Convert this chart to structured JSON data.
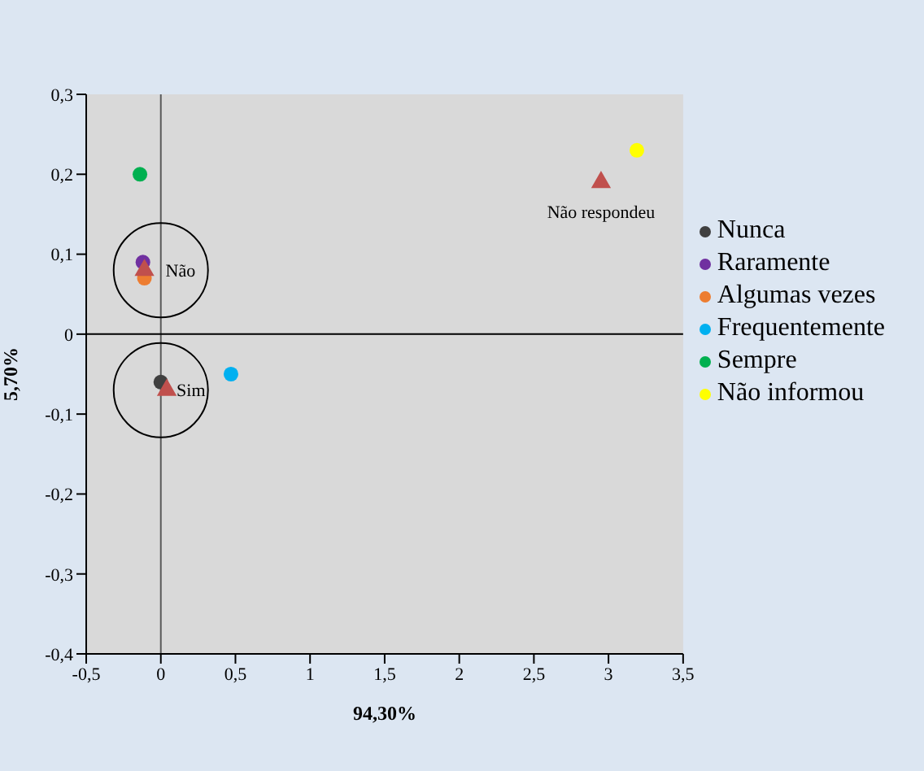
{
  "chart_data": {
    "type": "scatter",
    "xlabel": "94,30%",
    "ylabel": "5,70%",
    "xlim": [
      -0.5,
      3.5
    ],
    "ylim": [
      -0.4,
      0.3
    ],
    "xticks": [
      {
        "value": -0.5,
        "label": "-0,5"
      },
      0,
      {
        "value": 0.5,
        "label": "0,5"
      },
      1,
      {
        "value": 1.5,
        "label": "1,5"
      },
      2,
      {
        "value": 2.5,
        "label": "2,5"
      },
      3,
      {
        "value": 3.5,
        "label": "3,5"
      }
    ],
    "yticks": [
      {
        "value": -0.4,
        "label": "-0,4"
      },
      {
        "value": -0.3,
        "label": "-0,3"
      },
      {
        "value": -0.2,
        "label": "-0,2"
      },
      {
        "value": -0.1,
        "label": "-0,1"
      },
      0,
      {
        "value": 0.1,
        "label": "0,1"
      },
      {
        "value": 0.2,
        "label": "0,2"
      },
      {
        "value": 0.3,
        "label": "0,3"
      }
    ],
    "marker": "circle",
    "legend": "right",
    "series": [
      {
        "name": "Nunca",
        "color": "#404040",
        "x": [
          0
        ],
        "values": [
          -0.06
        ]
      },
      {
        "name": "Raramente",
        "color": "#7030a0",
        "x": [
          -0.12
        ],
        "values": [
          0.09
        ]
      },
      {
        "name": "Algumas vezes",
        "color": "#ed7d31",
        "x": [
          -0.11
        ],
        "values": [
          0.07
        ]
      },
      {
        "name": "Frequentemente",
        "color": "#00b0f0",
        "x": [
          0.47
        ],
        "values": [
          -0.05
        ]
      },
      {
        "name": "Sempre",
        "color": "#00b050",
        "x": [
          -0.14
        ],
        "values": [
          0.2
        ]
      },
      {
        "name": "Não informou",
        "color": "#ffff00",
        "x": [
          3.19
        ],
        "values": [
          0.23
        ]
      },
      {
        "color": "#c0504d",
        "marker": "triangle",
        "x": [
          2.95,
          -0.11,
          0.04
        ],
        "values": [
          0.19,
          0.08,
          -0.07
        ]
      }
    ],
    "ref_lines": [
      {
        "axis": "x",
        "value": 0,
        "color": "#595959"
      },
      {
        "axis": "y",
        "value": 0,
        "color": "#000000"
      }
    ],
    "annotations": [
      {
        "text": "Não respondeu",
        "x": 2.95,
        "y": 0.19
      },
      {
        "text": "Não",
        "x": -0.11,
        "y": 0.08
      },
      {
        "text": "Sim",
        "x": 0.04,
        "y": -0.07
      }
    ]
  }
}
